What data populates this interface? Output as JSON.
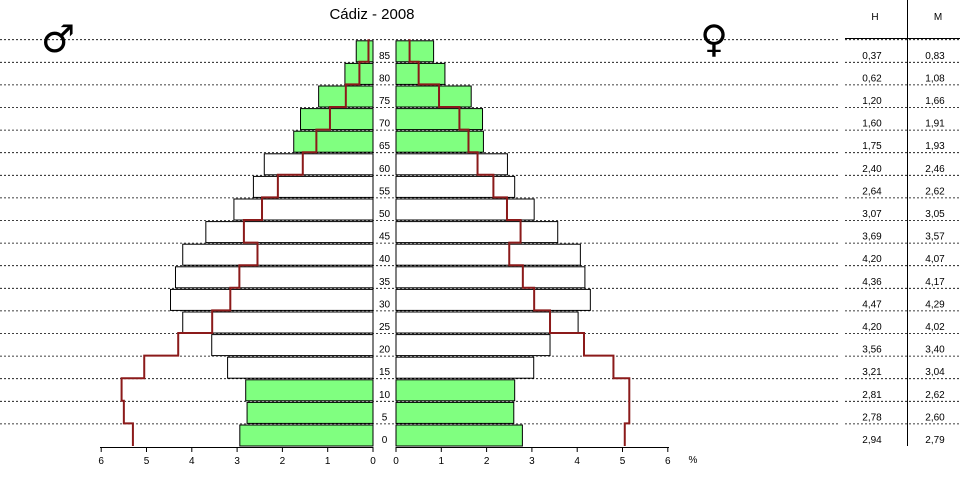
{
  "chart_data": {
    "type": "bar",
    "title": "Cádiz - 2008",
    "male_symbol": "♂",
    "female_symbol": "♀",
    "x_unit": "%",
    "xlim": [
      0,
      6
    ],
    "x_ticks": [
      "0",
      "1",
      "2",
      "3",
      "4",
      "5",
      "6"
    ],
    "age_labels": [
      "0",
      "5",
      "10",
      "15",
      "20",
      "25",
      "30",
      "35",
      "40",
      "45",
      "50",
      "55",
      "60",
      "65",
      "70",
      "75",
      "80",
      "85"
    ],
    "table": {
      "headers": [
        "H",
        "M"
      ],
      "male_text": [
        "2,94",
        "2,78",
        "2,81",
        "3,21",
        "3,56",
        "4,20",
        "4,47",
        "4,36",
        "4,20",
        "3,69",
        "3,07",
        "2,64",
        "2,40",
        "1,75",
        "1,60",
        "1,20",
        "0,62",
        "0,37"
      ],
      "female_text": [
        "2,79",
        "2,60",
        "2,62",
        "3,04",
        "3,40",
        "4,02",
        "4,29",
        "4,17",
        "4,07",
        "3,57",
        "3,05",
        "2,62",
        "2,46",
        "1,93",
        "1,91",
        "1,66",
        "1,08",
        "0,83"
      ]
    },
    "series": [
      {
        "name": "H",
        "values": [
          2.94,
          2.78,
          2.81,
          3.21,
          3.56,
          4.2,
          4.47,
          4.36,
          4.2,
          3.69,
          3.07,
          2.64,
          2.4,
          1.75,
          1.6,
          1.2,
          0.62,
          0.37
        ]
      },
      {
        "name": "M",
        "values": [
          2.79,
          2.6,
          2.62,
          3.04,
          3.4,
          4.02,
          4.29,
          4.17,
          4.07,
          3.57,
          3.05,
          2.62,
          2.46,
          1.93,
          1.91,
          1.66,
          1.08,
          0.83
        ]
      }
    ],
    "comparison_line": {
      "male": [
        5.3,
        5.5,
        5.55,
        5.05,
        4.3,
        3.55,
        3.15,
        2.95,
        2.55,
        2.85,
        2.45,
        2.1,
        1.55,
        1.25,
        0.95,
        0.6,
        0.3,
        0.1
      ],
      "female": [
        5.05,
        5.15,
        5.15,
        4.8,
        4.15,
        3.4,
        3.05,
        2.8,
        2.5,
        2.75,
        2.45,
        2.15,
        1.8,
        1.6,
        1.4,
        0.95,
        0.5,
        0.3
      ]
    },
    "grid": true,
    "colors": {
      "highlight_fill": "#80ff80",
      "bar_fill": "#ffffff",
      "bar_stroke": "#000000",
      "line": "#8b1a1a",
      "grid": "#000000"
    }
  }
}
